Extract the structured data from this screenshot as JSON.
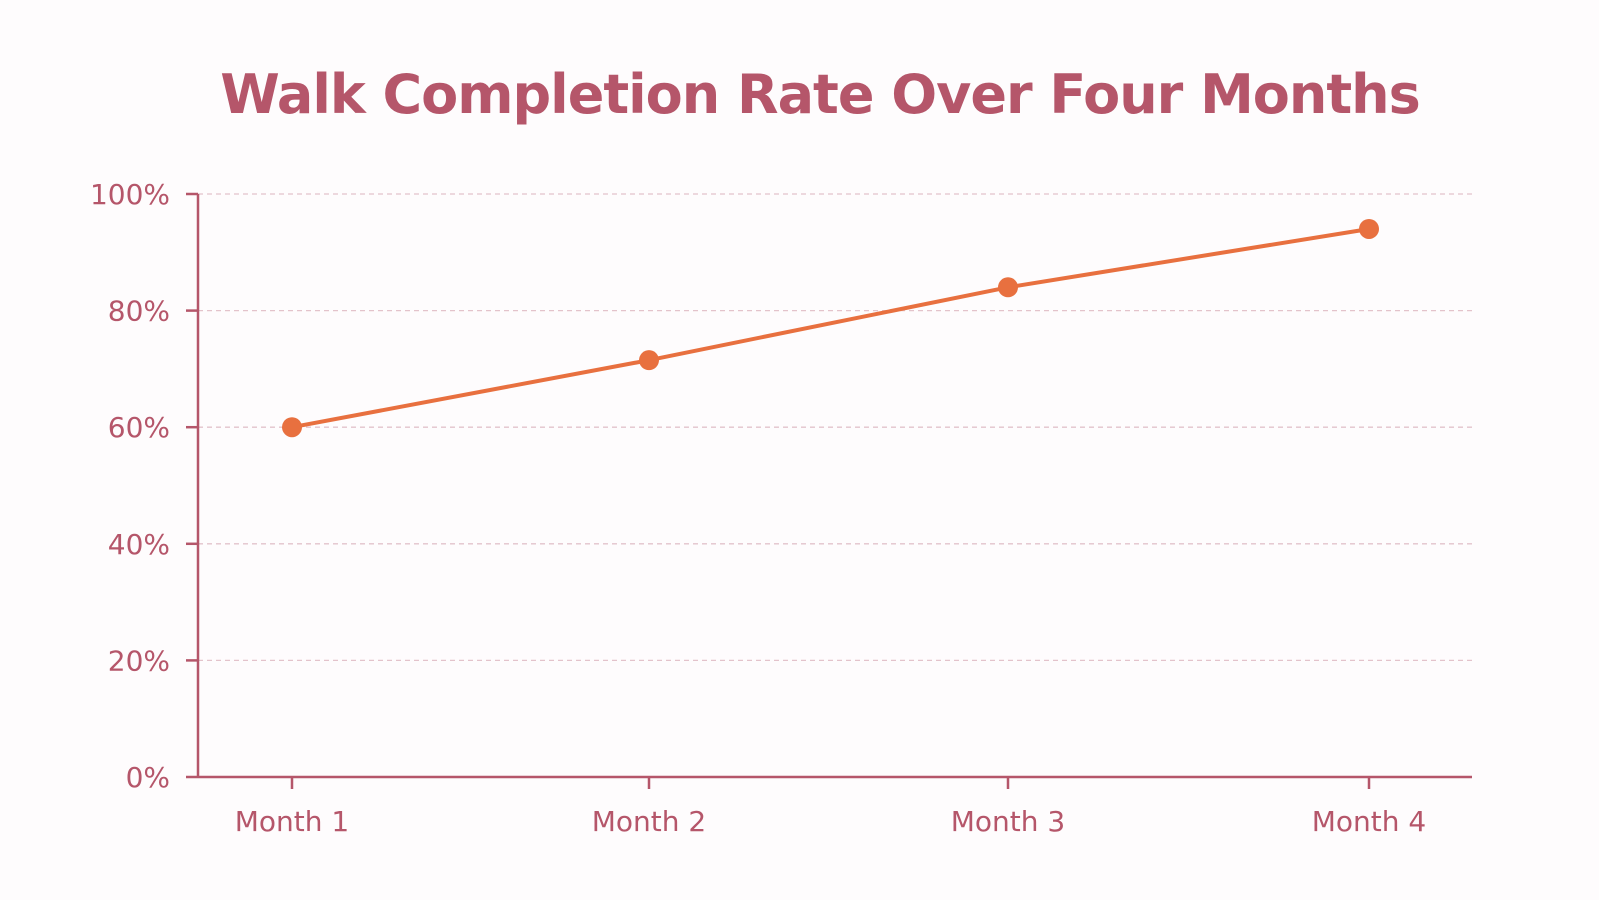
{
  "colors": {
    "background": "#fefcfd",
    "title": "#b5566a",
    "axis": "#b5566a",
    "tick_label": "#b5566a",
    "grid": "#e3c3cb",
    "series_line": "#e8703f",
    "series_marker": "#e8703f"
  },
  "chart_data": {
    "type": "line",
    "title": "Walk Completion Rate Over Four Months",
    "xlabel": "",
    "ylabel": "",
    "categories": [
      "Month 1",
      "Month 2",
      "Month 3",
      "Month 4"
    ],
    "series": [
      {
        "values": [
          60,
          71.5,
          84,
          94
        ]
      }
    ],
    "ylim": [
      0,
      100
    ],
    "yticks": [
      0,
      20,
      40,
      60,
      80,
      100
    ],
    "ytick_labels": [
      "0%",
      "20%",
      "40%",
      "60%",
      "80%",
      "100%"
    ],
    "grid": true,
    "legend": "none"
  }
}
